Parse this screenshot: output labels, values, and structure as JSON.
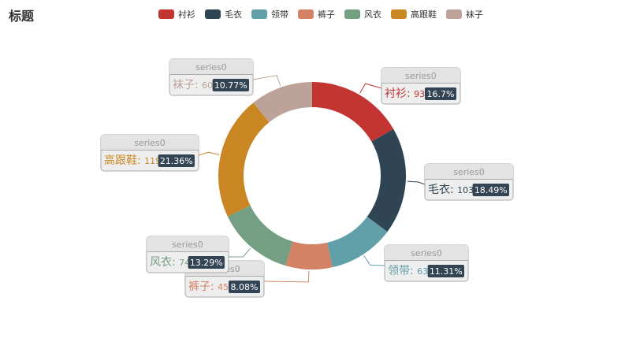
{
  "chart_data": {
    "type": "pie",
    "title": "标题",
    "legend_position": "top",
    "series_name": "series0",
    "categories": [
      "衬衫",
      "毛衣",
      "领带",
      "裤子",
      "风衣",
      "高跟鞋",
      "袜子"
    ],
    "values": [
      93,
      103,
      63,
      45,
      74,
      119,
      60
    ],
    "percents": [
      "16.7%",
      "18.49%",
      "11.31%",
      "8.08%",
      "13.29%",
      "21.36%",
      "10.77%"
    ],
    "colors": [
      "#c23531",
      "#2f4554",
      "#61a0a8",
      "#d48265",
      "#749f83",
      "#ca8622",
      "#bda29a"
    ]
  }
}
